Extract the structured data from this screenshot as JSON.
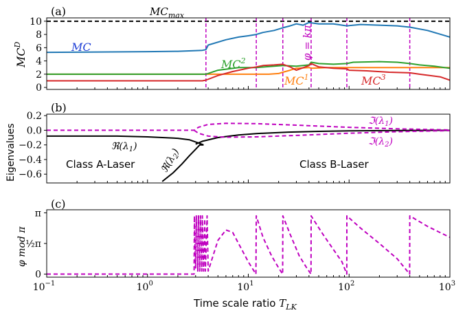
{
  "figure": {
    "xlabel": "Time scale ratio T_LK",
    "xlabel_main": "Time scale ratio ",
    "xlabel_sym": "T",
    "xlabel_sub": "LK",
    "x_scale": "log",
    "x_range": [
      0.1,
      1000
    ],
    "x_tick_labels": [
      {
        "base": "10",
        "exp": "−1",
        "value": 0.1
      },
      {
        "base": "10",
        "exp": "0",
        "value": 1
      },
      {
        "base": "10",
        "exp": "1",
        "value": 10
      },
      {
        "base": "10",
        "exp": "2",
        "value": 100
      },
      {
        "base": "10",
        "exp": "3",
        "value": 1000
      }
    ]
  },
  "chart_data": [
    {
      "panel": "(a)",
      "type": "line",
      "ylabel": "MC^D",
      "ylim": [
        -0.3,
        10.5
      ],
      "y_ticks": [
        0,
        2,
        4,
        6,
        8,
        10
      ],
      "reference_line": {
        "label": "MC_max",
        "value": 10,
        "style": "dashed",
        "color": "#000000"
      },
      "vertical_markers": [
        3.8,
        12,
        22,
        42,
        95,
        400
      ],
      "series": [
        {
          "name": "MC",
          "color": "#1f77b4",
          "x": [
            0.1,
            1,
            2,
            3.5,
            3.8,
            4,
            6,
            8,
            10,
            12,
            14,
            18,
            22,
            26,
            30,
            35,
            40,
            50,
            70,
            95,
            130,
            200,
            300,
            400,
            600,
            1000
          ],
          "y": [
            5.3,
            5.4,
            5.45,
            5.6,
            5.7,
            6.4,
            7.2,
            7.6,
            7.8,
            8.0,
            8.3,
            8.6,
            9.0,
            9.3,
            9.6,
            9.4,
            9.8,
            9.6,
            9.6,
            9.3,
            9.5,
            9.4,
            9.3,
            9.1,
            8.6,
            7.6
          ]
        },
        {
          "name": "MC^1",
          "color": "#ff7f0e",
          "x": [
            0.1,
            1,
            3.5,
            3.8,
            6,
            10,
            12,
            16,
            20,
            22,
            26,
            30,
            40,
            42,
            60,
            95,
            100,
            200,
            400,
            1000
          ],
          "y": [
            2.0,
            2.0,
            2.0,
            2.0,
            2.0,
            2.0,
            2.0,
            2.0,
            2.1,
            2.3,
            2.6,
            2.9,
            3.0,
            2.9,
            3.0,
            3.0,
            3.0,
            3.0,
            3.0,
            3.0
          ]
        },
        {
          "name": "MC^2",
          "color": "#2ca02c",
          "x": [
            0.1,
            1,
            3.5,
            3.8,
            5,
            8,
            12,
            18,
            22,
            30,
            40,
            42,
            50,
            70,
            95,
            110,
            200,
            300,
            400,
            500,
            700,
            1000
          ],
          "y": [
            2.0,
            2.0,
            2.0,
            2.0,
            2.6,
            3.0,
            3.0,
            3.2,
            3.3,
            3.2,
            3.4,
            3.8,
            3.6,
            3.5,
            3.6,
            3.8,
            3.9,
            3.8,
            3.6,
            3.4,
            3.2,
            2.9
          ]
        },
        {
          "name": "MC^3",
          "color": "#d62728",
          "x": [
            0.1,
            1,
            3.5,
            3.8,
            5,
            7,
            10,
            12,
            14,
            18,
            22,
            26,
            30,
            40,
            42,
            50,
            70,
            95,
            100,
            150,
            250,
            400,
            500,
            800,
            1000
          ],
          "y": [
            1.0,
            1.0,
            1.0,
            1.1,
            1.8,
            2.4,
            2.9,
            3.1,
            3.3,
            3.4,
            3.5,
            3.1,
            2.6,
            3.3,
            3.6,
            3.1,
            2.9,
            2.8,
            2.6,
            2.5,
            2.3,
            2.2,
            2.0,
            1.6,
            1.1
          ]
        }
      ],
      "annotations": [
        "(a)",
        "MC_max",
        "MC",
        "MC^2",
        "MC^1",
        "MC^3",
        "φ = kπ"
      ]
    },
    {
      "panel": "(b)",
      "type": "line",
      "ylabel": "Eigenvalues",
      "ylim": [
        -0.72,
        0.22
      ],
      "y_ticks": [
        0.2,
        0.0,
        -0.2,
        -0.4,
        -0.6
      ],
      "series": [
        {
          "name": "Re(λ1)",
          "color": "#000000",
          "style": "solid",
          "x": [
            0.1,
            0.5,
            1,
            2,
            2.6,
            3.0,
            3.3,
            3.6
          ],
          "y": [
            -0.08,
            -0.08,
            -0.09,
            -0.11,
            -0.13,
            -0.16,
            -0.18,
            -0.2
          ]
        },
        {
          "name": "Re(λ2)",
          "color": "#000000",
          "style": "solid",
          "x": [
            1.4,
            1.8,
            2.2,
            2.6,
            3.0,
            3.3,
            3.6
          ],
          "y": [
            -0.7,
            -0.58,
            -0.46,
            -0.35,
            -0.26,
            -0.2,
            -0.2
          ]
        },
        {
          "name": "Re(λ)",
          "color": "#000000",
          "style": "solid",
          "x": [
            3.0,
            3.5,
            5,
            8,
            12,
            25,
            50,
            100,
            300,
            1000
          ],
          "y": [
            -0.19,
            -0.15,
            -0.1,
            -0.065,
            -0.045,
            -0.025,
            -0.015,
            -0.008,
            -0.003,
            -0.001
          ]
        },
        {
          "name": "Im(λ1)",
          "color": "#bf00bf",
          "style": "dashed",
          "x": [
            0.1,
            1,
            2.9,
            3.2,
            4,
            6,
            12,
            30,
            100,
            300,
            1000
          ],
          "y": [
            0.0,
            0.0,
            0.0,
            0.04,
            0.08,
            0.095,
            0.09,
            0.07,
            0.04,
            0.02,
            0.005
          ]
        },
        {
          "name": "Im(λ2)",
          "color": "#bf00bf",
          "style": "dashed",
          "x": [
            2.9,
            3.2,
            4,
            6,
            12,
            30,
            100,
            300,
            1000
          ],
          "y": [
            0.0,
            -0.04,
            -0.08,
            -0.095,
            -0.09,
            -0.07,
            -0.04,
            -0.02,
            -0.005
          ]
        }
      ],
      "annotations": [
        "(b)",
        "Re(λ1)",
        "Re(λ2)",
        "Im(λ1)",
        "Im(λ2)",
        "Class A-Laser",
        "Class B-Laser"
      ]
    },
    {
      "panel": "(c)",
      "type": "line",
      "ylabel": "φ mod π",
      "ylim": [
        -0.05,
        1.05
      ],
      "y_ticks": [
        "π",
        "½π",
        "0"
      ],
      "series": [
        {
          "name": "phi mod pi",
          "color": "#bf00bf",
          "style": "dashed",
          "x": [
            0.1,
            2.9,
            2.92,
            3.0,
            3.05,
            3.15,
            3.2,
            3.3,
            3.35,
            3.45,
            3.5,
            3.6,
            3.7,
            3.75,
            3.9,
            4.0,
            5,
            6,
            7,
            8,
            10,
            11.9,
            12,
            14,
            17,
            20,
            21.9,
            22,
            26,
            32,
            38,
            41.9,
            42,
            55,
            70,
            85,
            94.9,
            95,
            130,
            200,
            300,
            399,
            400,
            600,
            1000
          ],
          "y": [
            0.0,
            0.0,
            0.95,
            0.1,
            0.95,
            0.05,
            0.95,
            0.05,
            0.95,
            0.05,
            0.95,
            0.05,
            0.9,
            0.05,
            0.95,
            0.05,
            0.55,
            0.72,
            0.68,
            0.5,
            0.2,
            0.0,
            0.95,
            0.6,
            0.3,
            0.1,
            0.0,
            0.95,
            0.65,
            0.3,
            0.1,
            0.0,
            0.95,
            0.65,
            0.4,
            0.2,
            0.0,
            0.95,
            0.75,
            0.5,
            0.25,
            0.0,
            0.95,
            0.78,
            0.6
          ]
        }
      ],
      "annotations": [
        "(c)"
      ]
    }
  ],
  "labels": {
    "a_panel": "(a)",
    "b_panel": "(b)",
    "c_panel": "(c)",
    "mcmax": "MC",
    "mcmax_sub": "max",
    "mc": "MC",
    "mc2": "MC",
    "mc2_sup": "2",
    "mc1": "MC",
    "mc1_sup": "1",
    "mc3": "MC",
    "mc3_sup": "3",
    "phi_k": "φ = kπ",
    "ylabel_a": "MC",
    "ylabel_a_sup": "D",
    "ylabel_b": "Eigenvalues",
    "ylabel_c": "φ mod π",
    "re1": "ℜ(λ",
    "re1_sub": "1",
    "re2": "ℜ(λ",
    "re2_sub": "2",
    "im1": "ℑ(λ",
    "im1_sub": "1",
    "im2": "ℑ(λ",
    "im2_sub": "2",
    "class_a": "Class A-Laser",
    "class_b": "Class B-Laser",
    "ytick_c_pi": "π",
    "ytick_c_half": "½π",
    "ytick_c_zero": "0",
    "close_paren": ")"
  }
}
